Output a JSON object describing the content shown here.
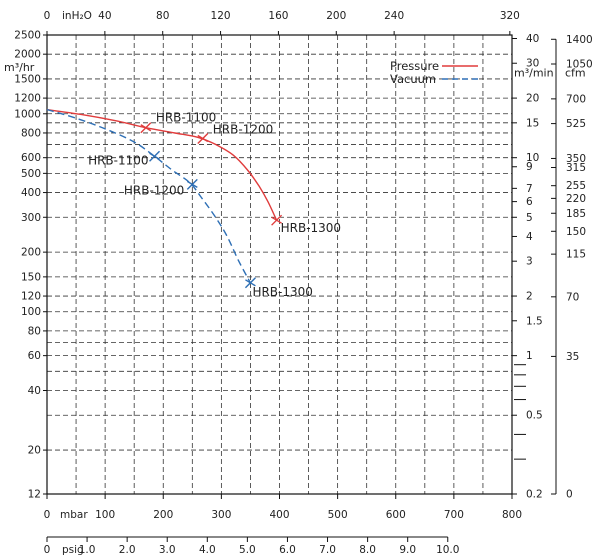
{
  "chart_data": {
    "type": "line",
    "title": "",
    "legend": {
      "placement": "top-right",
      "entries": [
        {
          "name": "Pressure",
          "color": "#e03c3c",
          "style": "solid"
        },
        {
          "name": "Vacuum",
          "color": "#2e6fb5",
          "style": "dashed"
        }
      ]
    },
    "grid": true,
    "x_axis_mbar": {
      "label": "mbar",
      "range": [
        0,
        800
      ],
      "ticks": [
        0,
        100,
        200,
        300,
        400,
        500,
        600,
        700,
        800
      ],
      "tick_labels": [
        "0",
        "100",
        "200",
        "300",
        "400",
        "500",
        "600",
        "700",
        "800"
      ]
    },
    "x_axis_psig": {
      "label": "psig",
      "ticks": [
        0,
        1.0,
        2.0,
        3.0,
        4.0,
        5.0,
        6.0,
        7.0,
        8.0,
        9.0,
        10.0
      ],
      "tick_labels": [
        "0",
        "1.0",
        "2.0",
        "3.0",
        "4.0",
        "5.0",
        "6.0",
        "7.0",
        "8.0",
        "9.0",
        "10.0"
      ]
    },
    "x_axis_inh2o": {
      "label": "inH₂O",
      "ticks": [
        0,
        40,
        80,
        120,
        160,
        200,
        240,
        320
      ],
      "tick_labels": [
        "0",
        "40",
        "80",
        "120",
        "160",
        "200",
        "240",
        "320"
      ]
    },
    "y_axis_m3hr": {
      "label": "m³/hr",
      "scale": "log",
      "range": [
        12,
        2500
      ],
      "ticks": [
        2500,
        2000,
        1500,
        1200,
        1000,
        800,
        600,
        500,
        400,
        300,
        200,
        150,
        120,
        100,
        80,
        60,
        40,
        20,
        12
      ],
      "tick_labels": [
        "2500",
        "2000",
        "1500",
        "1200",
        "1000",
        "800",
        "600",
        "500",
        "400",
        "300",
        "200",
        "150",
        "120",
        "100",
        "80",
        "60",
        "40",
        "20",
        "12"
      ],
      "extra_gridlines": [
        900,
        700,
        70,
        50,
        30
      ]
    },
    "y_axis_m3min": {
      "label": "m³/min",
      "ticks": [
        40,
        30,
        20,
        15,
        10,
        9,
        7,
        6,
        5,
        4,
        3,
        2,
        1.5,
        1,
        0.5,
        0.2
      ],
      "tick_labels": [
        "40",
        "30",
        "20",
        "15",
        "10",
        "9",
        "7",
        "6",
        "5",
        "4",
        "3",
        "2",
        "1.5",
        "1",
        "0.5",
        "0.2"
      ]
    },
    "y_axis_cfm": {
      "label": "cfm",
      "ticks": [
        1400,
        1050,
        700,
        525,
        350,
        315,
        255,
        220,
        185,
        150,
        115,
        70,
        35,
        0
      ],
      "tick_labels": [
        "1400",
        "1050",
        "700",
        "525",
        "350",
        "315",
        "255",
        "220",
        "185",
        "150",
        "115",
        "70",
        "35",
        "0"
      ]
    },
    "series": [
      {
        "name": "Pressure",
        "color": "#e03c3c",
        "dash": false,
        "points": [
          [
            0,
            1050
          ],
          [
            60,
            990
          ],
          [
            120,
            920
          ],
          [
            170,
            850
          ],
          [
            220,
            800
          ],
          [
            260,
            760
          ],
          [
            290,
            700
          ],
          [
            320,
            620
          ],
          [
            345,
            520
          ],
          [
            365,
            430
          ],
          [
            380,
            360
          ],
          [
            395,
            290
          ]
        ]
      },
      {
        "name": "Vacuum",
        "color": "#2e6fb5",
        "dash": true,
        "points": [
          [
            0,
            1050
          ],
          [
            50,
            950
          ],
          [
            100,
            840
          ],
          [
            150,
            720
          ],
          [
            185,
            610
          ],
          [
            215,
            520
          ],
          [
            245,
            450
          ],
          [
            265,
            380
          ],
          [
            290,
            300
          ],
          [
            310,
            240
          ],
          [
            330,
            180
          ],
          [
            350,
            140
          ]
        ]
      }
    ],
    "model_markers": [
      {
        "series": "Pressure",
        "label": "HRB-1100",
        "x": 170,
        "y": 850
      },
      {
        "series": "Pressure",
        "label": "HRB-1200",
        "x": 268,
        "y": 750
      },
      {
        "series": "Pressure",
        "label": "HRB-1300",
        "x": 395,
        "y": 290
      },
      {
        "series": "Vacuum",
        "label": "HRB-1100",
        "x": 185,
        "y": 610
      },
      {
        "series": "Vacuum",
        "label": "HRB-1200",
        "x": 250,
        "y": 440
      },
      {
        "series": "Vacuum",
        "label": "HRB-1300",
        "x": 350,
        "y": 140
      }
    ]
  }
}
